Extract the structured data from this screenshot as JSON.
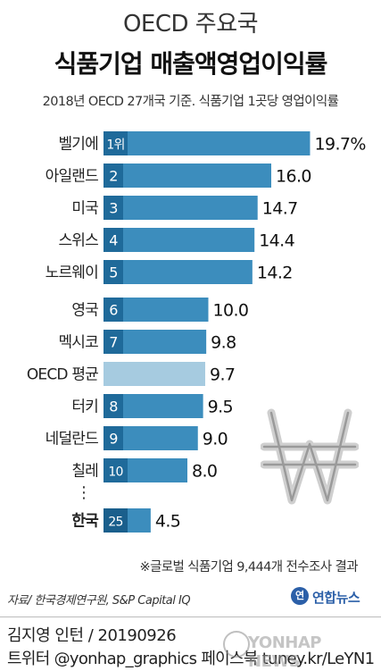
{
  "header": {
    "title_line1": "OECD 주요국",
    "title_line2": "식품기업 매출액영업이익률",
    "subtitle": "2018년 OECD 27개국 기준. 식품기업 1곳당 영업이익률"
  },
  "chart_data": {
    "type": "bar",
    "orientation": "horizontal",
    "categories": [
      "벨기에",
      "아일랜드",
      "미국",
      "스위스",
      "노르웨이",
      "영국",
      "멕시코",
      "OECD 평균",
      "터키",
      "네덜란드",
      "칠레",
      "한국"
    ],
    "ranks": [
      "1위",
      "2",
      "3",
      "4",
      "5",
      "6",
      "7",
      "",
      "8",
      "9",
      "10",
      "25"
    ],
    "values": [
      19.7,
      16.0,
      14.7,
      14.4,
      14.2,
      10.0,
      9.8,
      9.7,
      9.5,
      9.0,
      8.0,
      4.5
    ],
    "value_labels": [
      "19.7%",
      "16.0",
      "14.7",
      "14.4",
      "14.2",
      "10.0",
      "9.8",
      "9.7",
      "9.5",
      "9.0",
      "8.0",
      "4.5"
    ],
    "gap_before_index": 11,
    "gap_marker": "⋮",
    "colors": {
      "bar": "#3c8dbd",
      "rank_box": "#1f6a9a",
      "average": "#a6cbe0",
      "highlight": "#1a5f8c"
    }
  },
  "footnote": "※글로벌 식품기업 9,444개 전수조사 결과",
  "source": "자료/ 한국경제연구원, S&P Capital IQ",
  "logo": {
    "mark": "연",
    "text": "연합뉴스",
    "icon": "yonhap-logo-icon"
  },
  "credits": {
    "line1": "김지영 인턴 / 20190926",
    "line2": "트위터 @yonhap_graphics  페이스북 tuney.kr/LeYN1"
  },
  "watermark": "YONHAP NEWS"
}
